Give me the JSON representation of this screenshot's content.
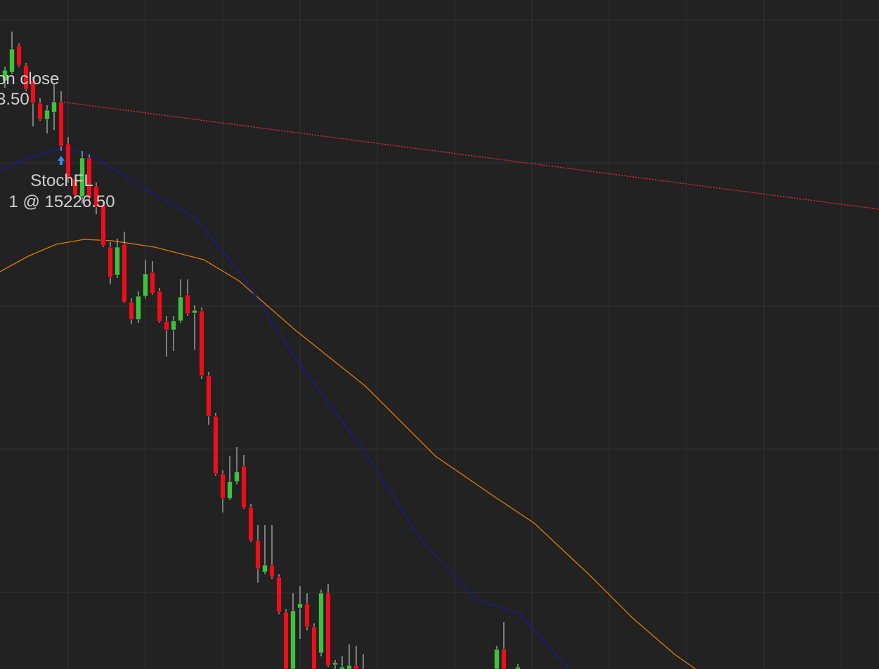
{
  "annotations": [
    {
      "label": "on close",
      "price": "3.50"
    },
    {
      "label": "StochFL",
      "fill": "1 @ 15226.50"
    }
  ]
}
